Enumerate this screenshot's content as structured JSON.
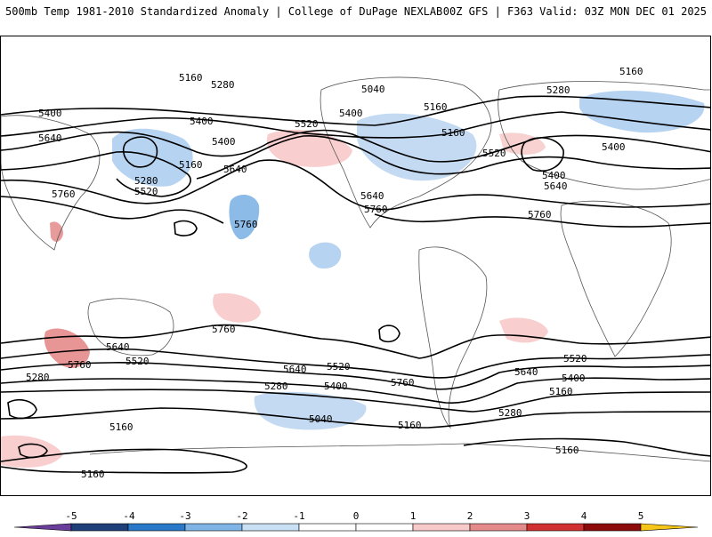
{
  "header": {
    "title_left": "500mb Temp 1981-2010 Standardized Anomaly | College of DuPage NEXLAB",
    "title_right": "00Z GFS | F363 Valid: 03Z MON DEC 01 2025"
  },
  "map": {
    "projection": "equirectangular",
    "variable": "500mb temperature standardized anomaly",
    "contour_field": "500mb geopotential height",
    "contour_labels": [
      {
        "id": "h1",
        "text": "5160"
      },
      {
        "id": "h2",
        "text": "5280"
      },
      {
        "id": "h3",
        "text": "5400"
      },
      {
        "id": "h4",
        "text": "5400"
      },
      {
        "id": "h5",
        "text": "5640"
      },
      {
        "id": "h6",
        "text": "5400"
      },
      {
        "id": "h7",
        "text": "5160"
      },
      {
        "id": "h8",
        "text": "5280"
      },
      {
        "id": "h9",
        "text": "5520"
      },
      {
        "id": "h10",
        "text": "5640"
      },
      {
        "id": "h11",
        "text": "5760"
      },
      {
        "id": "h12",
        "text": "5520"
      },
      {
        "id": "h13",
        "text": "5040"
      },
      {
        "id": "h14",
        "text": "5400"
      },
      {
        "id": "h15",
        "text": "5160"
      },
      {
        "id": "h16",
        "text": "5160"
      },
      {
        "id": "h17",
        "text": "5280"
      },
      {
        "id": "h18",
        "text": "5520"
      },
      {
        "id": "h19",
        "text": "5640"
      },
      {
        "id": "h20",
        "text": "5760"
      },
      {
        "id": "h21",
        "text": "5160"
      },
      {
        "id": "h22",
        "text": "5400"
      },
      {
        "id": "h23",
        "text": "5400"
      },
      {
        "id": "h24",
        "text": "5640"
      },
      {
        "id": "h25",
        "text": "5760"
      },
      {
        "id": "h26",
        "text": "5760"
      },
      {
        "id": "h27",
        "text": "5640"
      },
      {
        "id": "h28",
        "text": "5760"
      },
      {
        "id": "h29",
        "text": "5520"
      },
      {
        "id": "h30",
        "text": "5280"
      },
      {
        "id": "h31",
        "text": "5160"
      },
      {
        "id": "h32",
        "text": "5760"
      },
      {
        "id": "h33",
        "text": "5640"
      },
      {
        "id": "h34",
        "text": "5520"
      },
      {
        "id": "h35",
        "text": "5280"
      },
      {
        "id": "h36",
        "text": "5400"
      },
      {
        "id": "h37",
        "text": "5040"
      },
      {
        "id": "h38",
        "text": "5160"
      },
      {
        "id": "h39",
        "text": "5760"
      },
      {
        "id": "h40",
        "text": "5640"
      },
      {
        "id": "h41",
        "text": "5520"
      },
      {
        "id": "h42",
        "text": "5400"
      },
      {
        "id": "h43",
        "text": "5160"
      },
      {
        "id": "h44",
        "text": "5280"
      },
      {
        "id": "h45",
        "text": "5160"
      },
      {
        "id": "h46",
        "text": "5160"
      }
    ]
  },
  "colorbar": {
    "ticks": [
      "-5",
      "-4",
      "-3",
      "-2",
      "-1",
      "0",
      "1",
      "2",
      "3",
      "4",
      "5"
    ],
    "colors": [
      "#6a3d9a",
      "#1f3f7a",
      "#2a78c8",
      "#7fb4e6",
      "#c9dff4",
      "#ffffff",
      "#ffffff",
      "#f7c9c9",
      "#e48a8a",
      "#d0302f",
      "#8c0a0a",
      "#f5c518"
    ]
  }
}
